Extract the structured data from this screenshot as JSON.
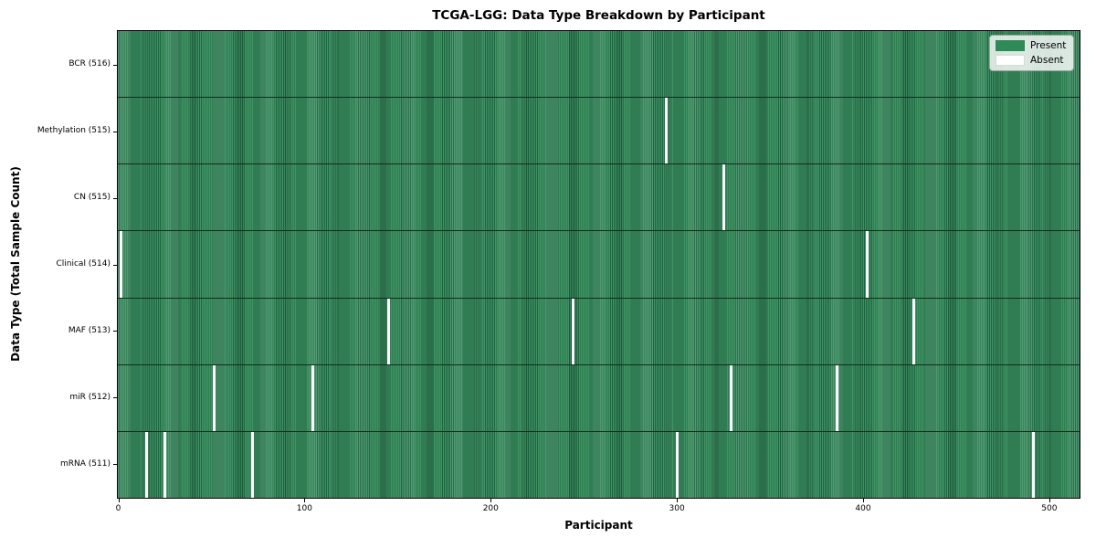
{
  "title": "TCGA-LGG: Data Type Breakdown by Participant",
  "x_axis_label": "Participant",
  "y_axis_label": "Data Type (Total Sample Count)",
  "legend": {
    "present_label": "Present",
    "absent_label": "Absent"
  },
  "colors": {
    "present": "#2e8b57",
    "present_stripe_light": "#3f9464",
    "present_stripe_dark": "#206342",
    "absent": "#ffffff",
    "row_separator": "#0f2d1c"
  },
  "chart_data": {
    "type": "heatmap",
    "x_min": 0,
    "x_max": 516,
    "x_ticks": [
      0,
      100,
      200,
      300,
      400,
      500
    ],
    "rows": [
      {
        "label": "BCR (516)",
        "data_type": "BCR",
        "present_count": 516,
        "absent_participants": []
      },
      {
        "label": "Methylation (515)",
        "data_type": "Methylation",
        "present_count": 515,
        "absent_participants": [
          294
        ]
      },
      {
        "label": "CN (515)",
        "data_type": "CN",
        "present_count": 515,
        "absent_participants": [
          325
        ]
      },
      {
        "label": "Clinical (514)",
        "data_type": "Clinical",
        "present_count": 514,
        "absent_participants": [
          1,
          402
        ]
      },
      {
        "label": "MAF (513)",
        "data_type": "MAF",
        "present_count": 513,
        "absent_participants": [
          145,
          244,
          427
        ]
      },
      {
        "label": "miR (512)",
        "data_type": "miR",
        "present_count": 512,
        "absent_participants": [
          51,
          104,
          329,
          386
        ]
      },
      {
        "label": "mRNA (511)",
        "data_type": "mRNA",
        "present_count": 511,
        "absent_participants": [
          15,
          25,
          72,
          300,
          491
        ]
      }
    ],
    "legend_entries": [
      "Present",
      "Absent"
    ],
    "legend_position": "upper right",
    "grid": false
  }
}
